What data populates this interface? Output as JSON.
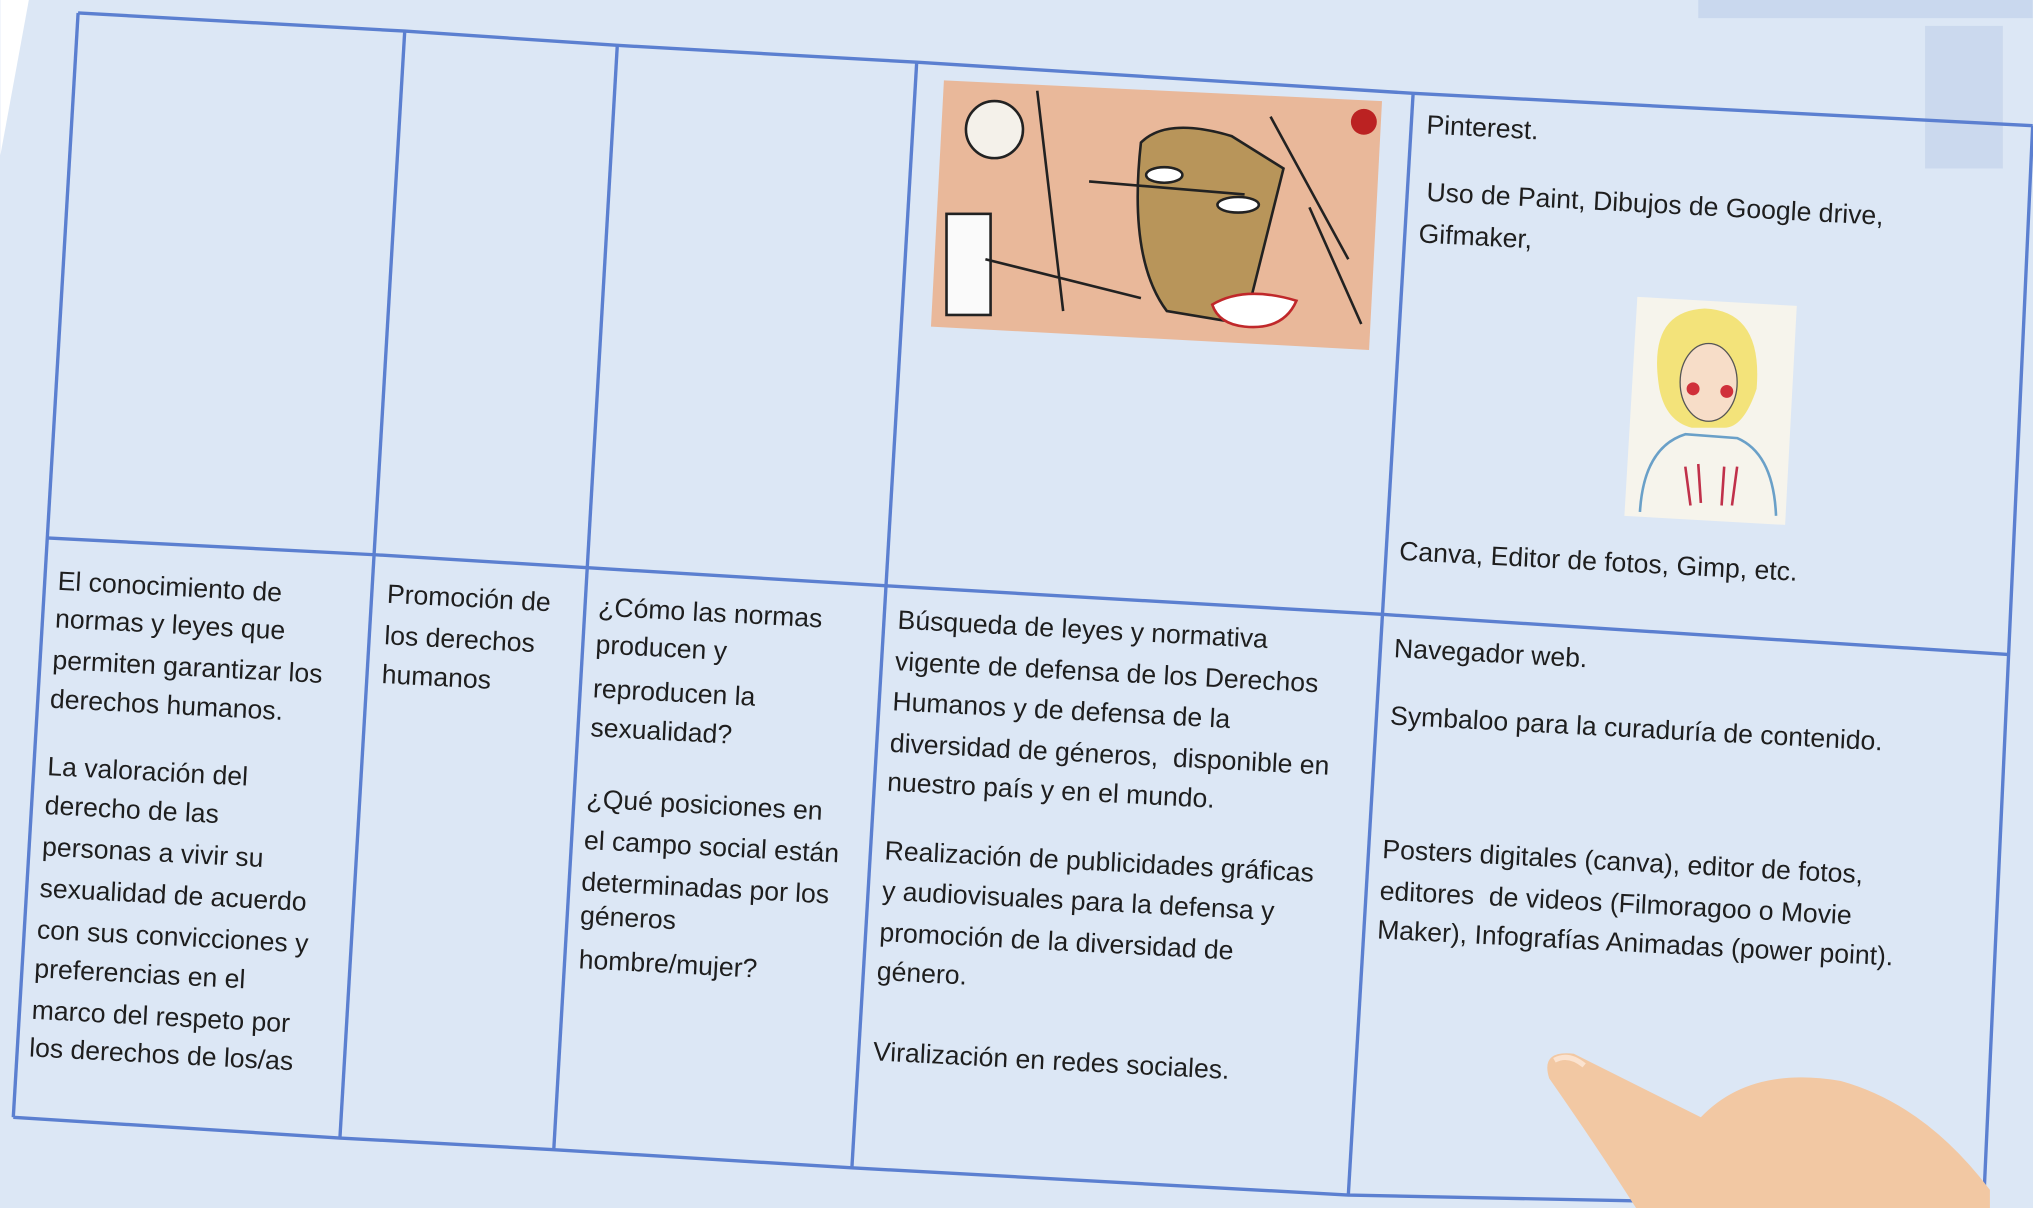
{
  "table": {
    "upper_row": {
      "tools_cell": {
        "paragraphs": [
          {
            "lines": [
              "Pinterest."
            ]
          },
          {
            "lines": [
              "Uso de Paint, Dibujos de Google drive,",
              "Gifmaker,"
            ]
          },
          {
            "lines": [
              "Canva, Editor de fotos, Gimp, etc."
            ]
          }
        ]
      }
    },
    "lower_row": {
      "cells": [
        {
          "paragraphs": [
            {
              "lines": [
                "El conocimiento de",
                "normas y leyes que",
                "permiten garantizar los",
                "derechos humanos."
              ]
            },
            {
              "lines": [
                "La valoración del",
                "derecho de las",
                "personas a vivir su",
                "sexualidad de acuerdo",
                "con sus convicciones y",
                "preferencias en el",
                "marco del respeto por",
                "los derechos de los/as"
              ]
            }
          ]
        },
        {
          "paragraphs": [
            {
              "lines": [
                "Promoción de",
                "los derechos",
                "humanos"
              ]
            }
          ]
        },
        {
          "paragraphs": [
            {
              "lines": [
                "¿Cómo las normas",
                "producen y",
                "reproducen la",
                "sexualidad?"
              ]
            },
            {
              "lines": [
                "¿Qué posiciones en",
                "el campo social están",
                "determinadas por los",
                "géneros",
                "hombre/mujer?"
              ]
            }
          ]
        },
        {
          "paragraphs": [
            {
              "lines": [
                "Búsqueda de leyes y normativa",
                "vigente de defensa de los Derechos",
                "Humanos y de defensa de la",
                "diversidad de géneros,  disponible en",
                "nuestro país y en el mundo."
              ]
            },
            {
              "lines": [
                "Realización de publicidades gráficas",
                "y audiovisuales para la defensa y",
                "promoción de la diversidad de",
                "género."
              ]
            },
            {
              "lines": [
                "Viralización en redes sociales."
              ]
            }
          ]
        },
        {
          "paragraphs": [
            {
              "lines": [
                "Navegador web."
              ]
            },
            {
              "lines": [
                "Symbaloo para la curaduría de contenido."
              ]
            },
            {
              "lines": [
                "Posters digitales (canva), editor de fotos,",
                "editores  de videos (Filmoragoo o Movie",
                "Maker), Infografías Animadas (power point)."
              ]
            }
          ]
        }
      ]
    }
  }
}
